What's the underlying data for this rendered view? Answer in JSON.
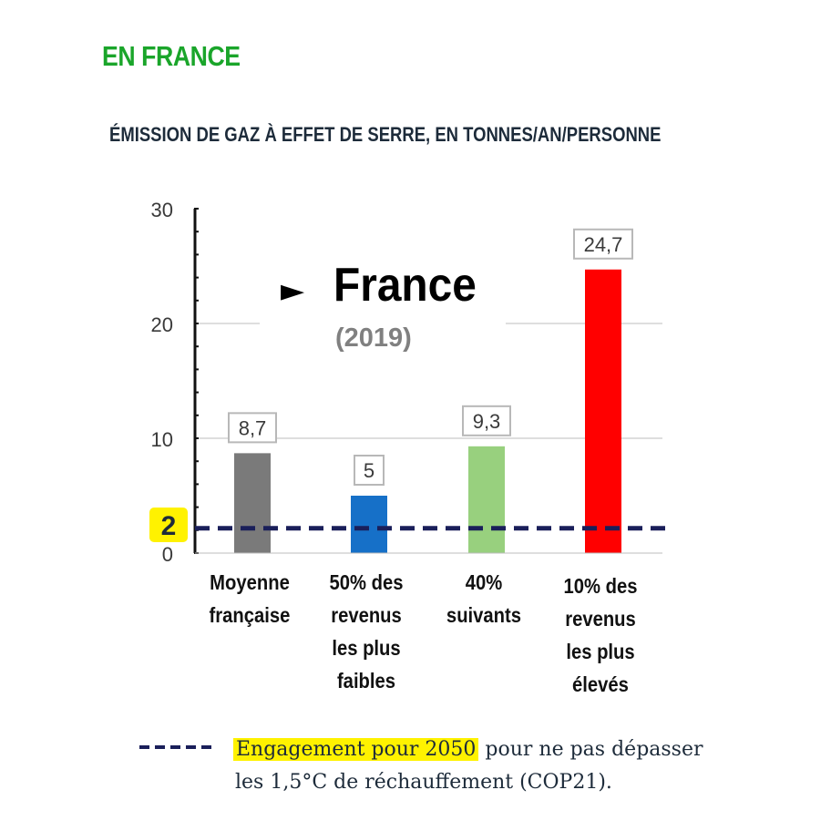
{
  "header": {
    "region_label": "EN FRANCE",
    "title": "ÉMISSION DE GAZ À EFFET DE SERRE, EN TONNES/AN/PERSONNE"
  },
  "chart_data": {
    "type": "bar",
    "categories": [
      [
        "Moyenne",
        "française"
      ],
      [
        "50% des",
        "revenus",
        "les plus",
        "faibles"
      ],
      [
        "40%",
        "suivants"
      ],
      [
        "10%  des",
        "revenus",
        "les plus",
        "élevés"
      ]
    ],
    "values": [
      8.7,
      5,
      9.3,
      24.7
    ],
    "value_labels": [
      "8,7",
      "5",
      "9,3",
      "24,7"
    ],
    "colors": [
      "#7a7a7a",
      "#1670c8",
      "#98d07e",
      "#ff0000"
    ],
    "ylim": [
      0,
      30
    ],
    "yticks": [
      "0",
      "10",
      "20",
      "30"
    ],
    "grid": true,
    "annotation": {
      "arrow": "►",
      "text": "France",
      "subtext": "(2019)"
    },
    "reference_line": {
      "value": 2,
      "label": "2",
      "color": "#1a1f5a",
      "highlight": "#fff200"
    }
  },
  "legend": {
    "highlight_text": "Engagement pour 2050",
    "rest_line1": " pour ne pas  dépasser",
    "line2": "les 1,5°C de réchauffement (COP21)."
  }
}
